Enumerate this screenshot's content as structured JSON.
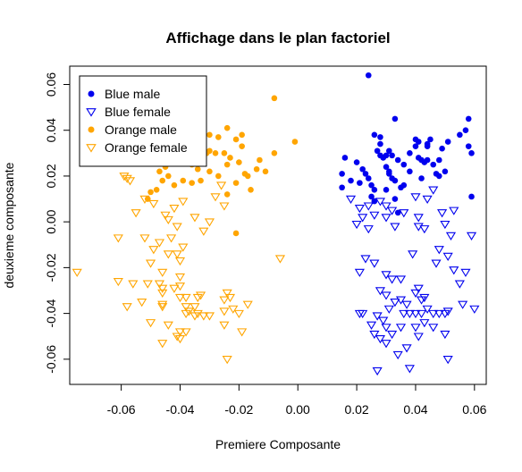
{
  "chart_data": {
    "type": "scatter",
    "title": "Affichage dans le plan factoriel",
    "xlabel": "Premiere Composante",
    "ylabel": "deuxieme composante",
    "xlim": [
      -0.0775,
      0.064
    ],
    "ylim": [
      -0.071,
      0.068
    ],
    "x_ticks": [
      -0.06,
      -0.04,
      -0.02,
      0.0,
      0.02,
      0.04,
      0.06
    ],
    "x_tick_labels": [
      "-0.06",
      "-0.04",
      "-0.02",
      "0.00",
      "0.02",
      "0.04",
      "0.06"
    ],
    "y_ticks": [
      -0.06,
      -0.04,
      -0.02,
      0.0,
      0.02,
      0.04,
      0.06
    ],
    "y_tick_labels": [
      "-0.06",
      "-0.04",
      "-0.02",
      "0.00",
      "0.02",
      "0.04",
      "0.06"
    ],
    "grid": false,
    "legend_position": "top-left",
    "series": [
      {
        "name": "Blue male",
        "color": "#0000ee",
        "marker": "filled-circle",
        "points": [
          [
            0.024,
            0.064
          ],
          [
            0.016,
            0.028
          ],
          [
            0.02,
            0.026
          ],
          [
            0.015,
            0.021
          ],
          [
            0.015,
            0.015
          ],
          [
            0.018,
            0.018
          ],
          [
            0.021,
            0.017
          ],
          [
            0.022,
            0.023
          ],
          [
            0.023,
            0.021
          ],
          [
            0.024,
            0.019
          ],
          [
            0.025,
            0.016
          ],
          [
            0.026,
            0.014
          ],
          [
            0.025,
            0.011
          ],
          [
            0.026,
            0.009
          ],
          [
            0.027,
            0.031
          ],
          [
            0.028,
            0.029
          ],
          [
            0.028,
            0.034
          ],
          [
            0.03,
            0.029
          ],
          [
            0.031,
            0.031
          ],
          [
            0.032,
            0.029
          ],
          [
            0.03,
            0.024
          ],
          [
            0.031,
            0.021
          ],
          [
            0.032,
            0.019
          ],
          [
            0.033,
            0.018
          ],
          [
            0.035,
            0.015
          ],
          [
            0.033,
            0.01
          ],
          [
            0.034,
            0.004
          ],
          [
            0.03,
            0.014
          ],
          [
            0.034,
            0.027
          ],
          [
            0.036,
            0.025
          ],
          [
            0.038,
            0.03
          ],
          [
            0.04,
            0.033
          ],
          [
            0.041,
            0.028
          ],
          [
            0.042,
            0.027
          ],
          [
            0.044,
            0.027
          ],
          [
            0.046,
            0.025
          ],
          [
            0.048,
            0.027
          ],
          [
            0.049,
            0.032
          ],
          [
            0.04,
            0.036
          ],
          [
            0.041,
            0.035
          ],
          [
            0.044,
            0.033
          ],
          [
            0.045,
            0.036
          ],
          [
            0.048,
            0.02
          ],
          [
            0.05,
            0.022
          ],
          [
            0.047,
            0.021
          ],
          [
            0.033,
            0.045
          ],
          [
            0.028,
            0.037
          ],
          [
            0.026,
            0.038
          ],
          [
            0.042,
            0.019
          ],
          [
            0.036,
            0.016
          ],
          [
            0.038,
            0.022
          ],
          [
            0.043,
            0.026
          ],
          [
            0.044,
            0.034
          ],
          [
            0.051,
            0.035
          ],
          [
            0.055,
            0.038
          ],
          [
            0.057,
            0.04
          ],
          [
            0.058,
            0.045
          ],
          [
            0.058,
            0.033
          ],
          [
            0.059,
            0.03
          ],
          [
            0.059,
            0.011
          ],
          [
            0.029,
            0.028
          ],
          [
            0.031,
            0.022
          ]
        ]
      },
      {
        "name": "Blue female",
        "color": "#0000ee",
        "marker": "open-triangle-down",
        "points": [
          [
            0.018,
            0.01
          ],
          [
            0.021,
            0.006
          ],
          [
            0.022,
            0.002
          ],
          [
            0.02,
            -0.001
          ],
          [
            0.024,
            0.007
          ],
          [
            0.026,
            0.003
          ],
          [
            0.028,
            0.009
          ],
          [
            0.03,
            0.007
          ],
          [
            0.032,
            0.005
          ],
          [
            0.03,
            0.002
          ],
          [
            0.033,
            -0.002
          ],
          [
            0.026,
            -0.018
          ],
          [
            0.023,
            -0.016
          ],
          [
            0.021,
            -0.022
          ],
          [
            0.03,
            -0.023
          ],
          [
            0.032,
            -0.025
          ],
          [
            0.028,
            -0.03
          ],
          [
            0.03,
            -0.032
          ],
          [
            0.033,
            -0.035
          ],
          [
            0.035,
            -0.034
          ],
          [
            0.031,
            -0.038
          ],
          [
            0.027,
            -0.041
          ],
          [
            0.029,
            -0.043
          ],
          [
            0.03,
            -0.046
          ],
          [
            0.028,
            -0.051
          ],
          [
            0.03,
            -0.053
          ],
          [
            0.032,
            -0.049
          ],
          [
            0.025,
            -0.045
          ],
          [
            0.026,
            -0.049
          ],
          [
            0.034,
            -0.058
          ],
          [
            0.027,
            -0.065
          ],
          [
            0.021,
            -0.04
          ],
          [
            0.022,
            -0.04
          ],
          [
            0.036,
            -0.04
          ],
          [
            0.037,
            -0.036
          ],
          [
            0.038,
            -0.04
          ],
          [
            0.04,
            -0.046
          ],
          [
            0.041,
            -0.05
          ],
          [
            0.04,
            -0.04
          ],
          [
            0.042,
            -0.04
          ],
          [
            0.043,
            -0.044
          ],
          [
            0.044,
            -0.038
          ],
          [
            0.046,
            -0.04
          ],
          [
            0.046,
            -0.046
          ],
          [
            0.048,
            -0.04
          ],
          [
            0.05,
            -0.04
          ],
          [
            0.051,
            -0.039
          ],
          [
            0.05,
            -0.049
          ],
          [
            0.043,
            -0.033
          ],
          [
            0.04,
            -0.031
          ],
          [
            0.042,
            -0.034
          ],
          [
            0.041,
            -0.029
          ],
          [
            0.039,
            -0.014
          ],
          [
            0.041,
            -0.002
          ],
          [
            0.043,
            -0.003
          ],
          [
            0.048,
            -0.012
          ],
          [
            0.047,
            -0.018
          ],
          [
            0.051,
            -0.015
          ],
          [
            0.053,
            -0.021
          ],
          [
            0.055,
            -0.027
          ],
          [
            0.057,
            -0.022
          ],
          [
            0.059,
            -0.006
          ],
          [
            0.052,
            -0.006
          ],
          [
            0.05,
            -0.001
          ],
          [
            0.049,
            0.004
          ],
          [
            0.053,
            0.005
          ],
          [
            0.06,
            -0.038
          ],
          [
            0.056,
            -0.036
          ],
          [
            0.051,
            -0.06
          ],
          [
            0.038,
            -0.064
          ],
          [
            0.037,
            -0.055
          ],
          [
            0.035,
            -0.046
          ],
          [
            0.04,
            0.011
          ],
          [
            0.041,
            0.002
          ],
          [
            0.036,
            0.004
          ],
          [
            0.024,
            -0.003
          ],
          [
            0.035,
            -0.025
          ],
          [
            0.044,
            0.01
          ],
          [
            0.046,
            0.014
          ]
        ]
      },
      {
        "name": "Orange male",
        "color": "#ffa500",
        "marker": "filled-circle",
        "points": [
          [
            -0.008,
            0.054
          ],
          [
            -0.019,
            0.038
          ],
          [
            -0.021,
            0.036
          ],
          [
            -0.024,
            0.041
          ],
          [
            -0.027,
            0.037
          ],
          [
            -0.03,
            0.038
          ],
          [
            -0.032,
            0.036
          ],
          [
            -0.035,
            0.034
          ],
          [
            -0.038,
            0.034
          ],
          [
            -0.041,
            0.033
          ],
          [
            -0.042,
            0.031
          ],
          [
            -0.045,
            0.03
          ],
          [
            -0.048,
            0.028
          ],
          [
            -0.05,
            0.026
          ],
          [
            -0.04,
            0.027
          ],
          [
            -0.038,
            0.026
          ],
          [
            -0.036,
            0.025
          ],
          [
            -0.034,
            0.023
          ],
          [
            -0.03,
            0.031
          ],
          [
            -0.028,
            0.03
          ],
          [
            -0.025,
            0.03
          ],
          [
            -0.023,
            0.028
          ],
          [
            -0.02,
            0.026
          ],
          [
            -0.018,
            0.021
          ],
          [
            -0.016,
            0.014
          ],
          [
            -0.014,
            0.023
          ],
          [
            -0.013,
            0.027
          ],
          [
            -0.011,
            0.022
          ],
          [
            -0.008,
            0.03
          ],
          [
            -0.001,
            0.035
          ],
          [
            -0.024,
            0.025
          ],
          [
            -0.027,
            0.02
          ],
          [
            -0.03,
            0.022
          ],
          [
            -0.033,
            0.018
          ],
          [
            -0.036,
            0.017
          ],
          [
            -0.039,
            0.018
          ],
          [
            -0.042,
            0.016
          ],
          [
            -0.044,
            0.02
          ],
          [
            -0.046,
            0.018
          ],
          [
            -0.048,
            0.014
          ],
          [
            -0.05,
            0.013
          ],
          [
            -0.051,
            0.01
          ],
          [
            -0.047,
            0.022
          ],
          [
            -0.045,
            0.024
          ],
          [
            -0.024,
            0.012
          ],
          [
            -0.021,
            0.017
          ],
          [
            -0.017,
            0.02
          ],
          [
            -0.021,
            -0.005
          ],
          [
            -0.019,
            0.033
          ],
          [
            -0.031,
            0.03
          ],
          [
            -0.035,
            0.029
          ]
        ]
      },
      {
        "name": "Orange female",
        "color": "#ffa500",
        "marker": "open-triangle-down",
        "points": [
          [
            -0.059,
            0.02
          ],
          [
            -0.058,
            0.019
          ],
          [
            -0.057,
            0.018
          ],
          [
            -0.052,
            0.01
          ],
          [
            -0.049,
            0.008
          ],
          [
            -0.055,
            0.004
          ],
          [
            -0.045,
            0.003
          ],
          [
            -0.044,
            0.001
          ],
          [
            -0.042,
            0.006
          ],
          [
            -0.039,
            0.009
          ],
          [
            -0.035,
            0.002
          ],
          [
            -0.032,
            -0.004
          ],
          [
            -0.03,
            0.0
          ],
          [
            -0.028,
            0.011
          ],
          [
            -0.026,
            0.016
          ],
          [
            -0.025,
            0.007
          ],
          [
            -0.041,
            -0.002
          ],
          [
            -0.043,
            -0.007
          ],
          [
            -0.047,
            -0.009
          ],
          [
            -0.052,
            -0.007
          ],
          [
            -0.049,
            -0.012
          ],
          [
            -0.044,
            -0.014
          ],
          [
            -0.041,
            -0.014
          ],
          [
            -0.039,
            -0.011
          ],
          [
            -0.061,
            -0.007
          ],
          [
            -0.05,
            -0.018
          ],
          [
            -0.04,
            -0.017
          ],
          [
            -0.046,
            -0.022
          ],
          [
            -0.051,
            -0.027
          ],
          [
            -0.056,
            -0.027
          ],
          [
            -0.061,
            -0.026
          ],
          [
            -0.075,
            -0.022
          ],
          [
            -0.047,
            -0.027
          ],
          [
            -0.046,
            -0.029
          ],
          [
            -0.04,
            -0.024
          ],
          [
            -0.04,
            -0.028
          ],
          [
            -0.042,
            -0.029
          ],
          [
            -0.046,
            -0.031
          ],
          [
            -0.053,
            -0.035
          ],
          [
            -0.058,
            -0.037
          ],
          [
            -0.046,
            -0.036
          ],
          [
            -0.04,
            -0.033
          ],
          [
            -0.038,
            -0.037
          ],
          [
            -0.037,
            -0.039
          ],
          [
            -0.035,
            -0.037
          ],
          [
            -0.034,
            -0.033
          ],
          [
            -0.032,
            -0.041
          ],
          [
            -0.03,
            -0.041
          ],
          [
            -0.024,
            -0.031
          ],
          [
            -0.023,
            -0.033
          ],
          [
            -0.025,
            -0.034
          ],
          [
            -0.022,
            -0.038
          ],
          [
            -0.025,
            -0.039
          ],
          [
            -0.02,
            -0.04
          ],
          [
            -0.025,
            -0.045
          ],
          [
            -0.046,
            -0.053
          ],
          [
            -0.041,
            -0.05
          ],
          [
            -0.04,
            -0.051
          ],
          [
            -0.04,
            -0.048
          ],
          [
            -0.038,
            -0.048
          ],
          [
            -0.038,
            -0.04
          ],
          [
            -0.034,
            -0.04
          ],
          [
            -0.017,
            -0.036
          ],
          [
            -0.024,
            -0.06
          ],
          [
            -0.006,
            -0.016
          ],
          [
            -0.046,
            -0.037
          ],
          [
            -0.038,
            -0.033
          ],
          [
            -0.035,
            -0.041
          ],
          [
            -0.05,
            -0.044
          ],
          [
            -0.044,
            -0.045
          ],
          [
            -0.019,
            -0.048
          ],
          [
            -0.033,
            -0.032
          ]
        ]
      }
    ]
  }
}
